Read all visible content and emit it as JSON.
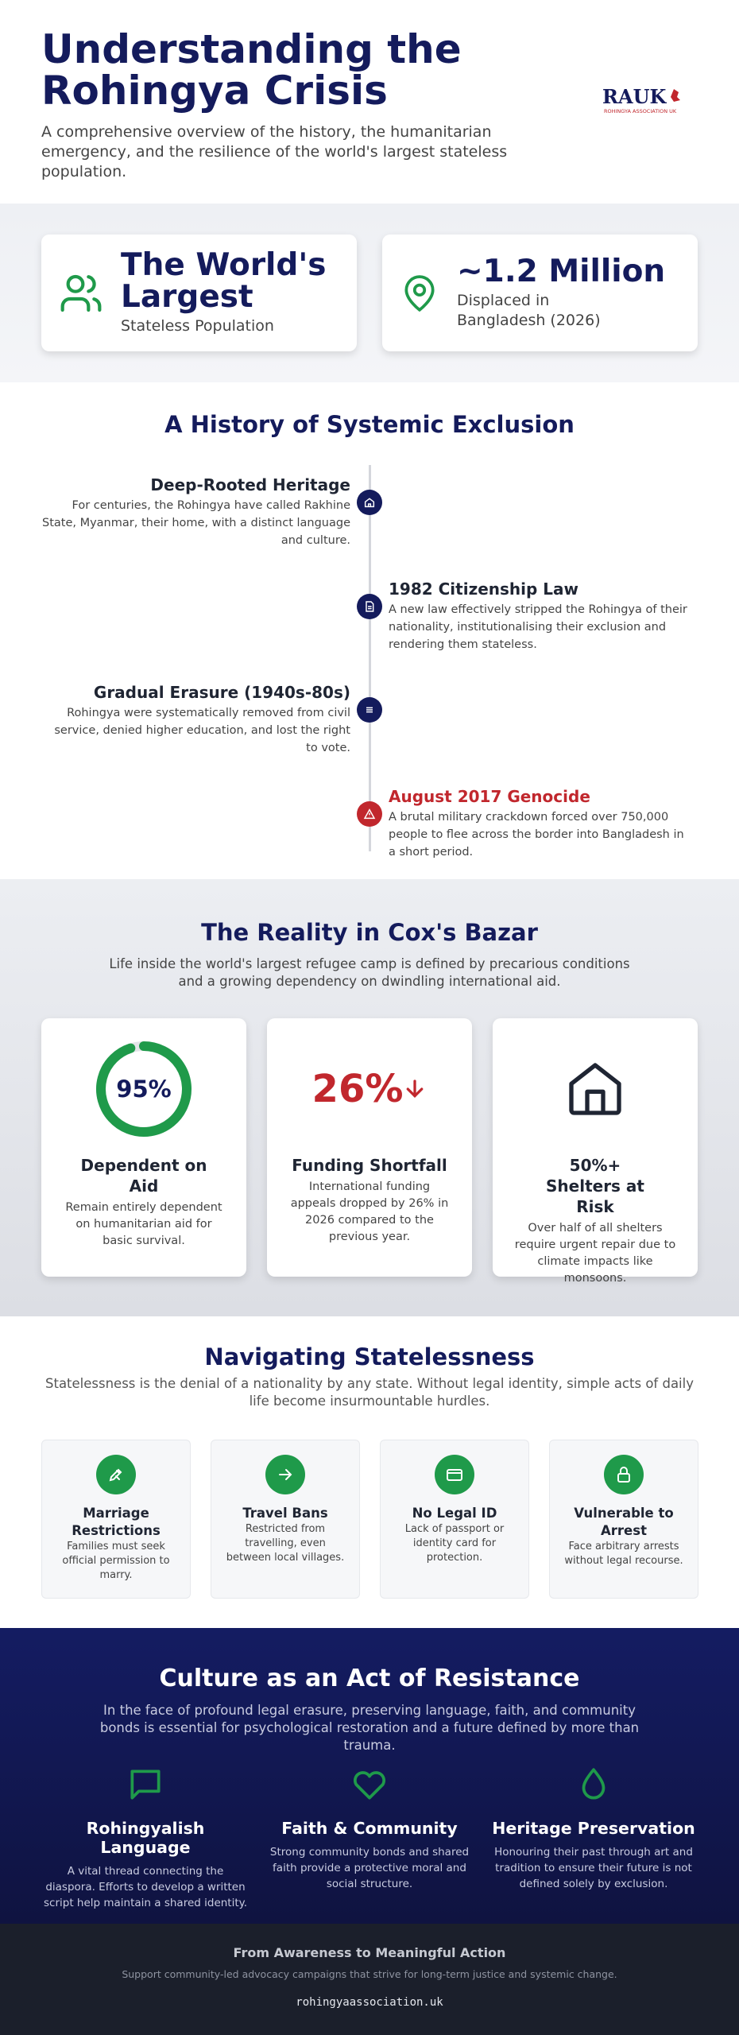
{
  "header": {
    "title": "Understanding the Rohingya Crisis",
    "subtitle": "A comprehensive overview of the history, the humanitarian emergency, and the resilience of the world's largest stateless population.",
    "logo": {
      "name": "RAUK",
      "full_name": "ROHINGYA ASSOCIATION UK"
    }
  },
  "stats": [
    {
      "title": "The World's Largest",
      "label": "Stateless Population"
    },
    {
      "title": "~1.2 Million",
      "label": "Displaced in Bangladesh (2026)"
    }
  ],
  "history": {
    "title": "A History of Systemic Exclusion",
    "events": [
      {
        "title": "Deep-Rooted Heritage",
        "text": "For centuries, the Rohingya have called Rakhine State, Myanmar, their home, with a distinct language and culture."
      },
      {
        "title": "1982 Citizenship Law",
        "text": "A new law effectively stripped the Rohingya of their nationality, institutionalising their exclusion and rendering them stateless."
      },
      {
        "title": "Gradual Erasure (1940s-80s)",
        "text": "Rohingya were systematically removed from civil service, denied higher education, and lost the right to vote."
      },
      {
        "title": "August 2017 Genocide",
        "text": "A brutal military crackdown forced over 750,000 people to flee across the border into Bangladesh in a short period."
      }
    ]
  },
  "reality": {
    "title": "The Reality in Cox's Bazar",
    "subtitle": "Life inside the world's largest refugee camp is defined by precarious conditions and a growing dependency on dwindling international aid.",
    "cards": [
      {
        "figure": "95%",
        "title": "Dependent on Aid",
        "text": "Remain entirely dependent on humanitarian aid for basic survival."
      },
      {
        "figure": "26%",
        "title": "Funding Shortfall",
        "text": "International funding appeals dropped by 26% in 2026 compared to the previous year."
      },
      {
        "title": "50%+ Shelters at Risk",
        "text": "Over half of all shelters require urgent repair due to climate impacts like monsoons."
      }
    ]
  },
  "statelessness": {
    "title": "Navigating Statelessness",
    "subtitle": "Statelessness is the denial of a nationality by any state. Without legal identity, simple acts of daily life become insurmountable hurdles.",
    "items": [
      {
        "title": "Marriage Restrictions",
        "text": "Families must seek official permission to marry."
      },
      {
        "title": "Travel Bans",
        "text": "Restricted from travelling, even between local villages."
      },
      {
        "title": "No Legal ID",
        "text": "Lack of passport or identity card for protection."
      },
      {
        "title": "Vulnerable to Arrest",
        "text": "Face arbitrary arrests without legal recourse."
      }
    ]
  },
  "culture": {
    "title": "Culture as an Act of Resistance",
    "subtitle": "In the face of profound legal erasure, preserving language, faith, and community bonds is essential for psychological restoration and a future defined by more than trauma.",
    "items": [
      {
        "title": "Rohingyalish Language",
        "text": "A vital thread connecting the diaspora. Efforts to develop a written script help maintain a shared identity."
      },
      {
        "title": "Faith & Community",
        "text": "Strong community bonds and shared faith provide a protective moral and social structure."
      },
      {
        "title": "Heritage Preservation",
        "text": "Honouring their past through art and tradition to ensure their future is not defined solely by exclusion."
      }
    ]
  },
  "footer": {
    "title": "From Awareness to Meaningful Action",
    "text": "Support community-led advocacy campaigns that strive for long-term justice and systemic change.",
    "url": "rohingyaassociation.uk"
  }
}
